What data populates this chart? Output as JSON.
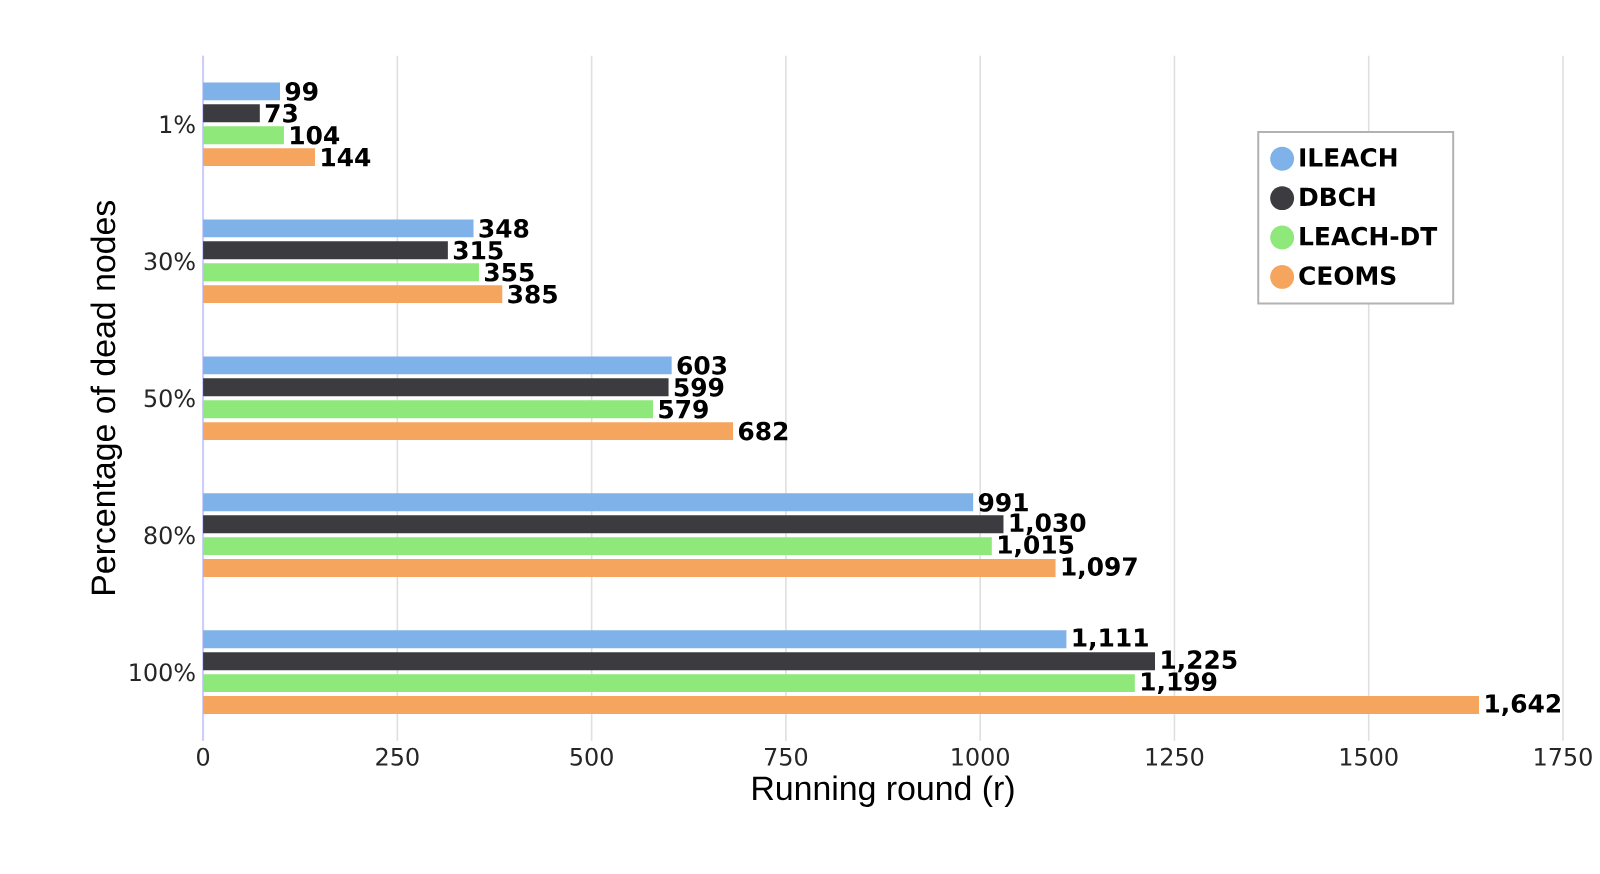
{
  "chart_data": {
    "type": "bar",
    "orientation": "horizontal",
    "xlabel": "Running round (r)",
    "ylabel": "Percentage of dead nodes",
    "categories": [
      "1%",
      "30%",
      "50%",
      "80%",
      "100%"
    ],
    "series": [
      {
        "name": "ILEACH",
        "color": "#7fb2e8",
        "values": [
          99,
          348,
          603,
          991,
          1111
        ],
        "value_labels": [
          "99",
          "348",
          "603",
          "991",
          "1,111"
        ]
      },
      {
        "name": "DBCH",
        "color": "#3c3c40",
        "values": [
          73,
          315,
          599,
          1030,
          1225
        ],
        "value_labels": [
          "73",
          "315",
          "599",
          "1,030",
          "1,225"
        ]
      },
      {
        "name": "LEACH-DT",
        "color": "#8ee87a",
        "values": [
          104,
          355,
          579,
          1015,
          1199
        ],
        "value_labels": [
          "104",
          "355",
          "579",
          "1,015",
          "1,199"
        ]
      },
      {
        "name": "CEOMS",
        "color": "#f6a55e",
        "values": [
          144,
          385,
          682,
          1097,
          1642
        ],
        "value_labels": [
          "144",
          "385",
          "682",
          "1,097",
          "1,642"
        ]
      }
    ],
    "xlim": [
      0,
      1750
    ],
    "xticks": [
      0,
      250,
      500,
      750,
      1000,
      1250,
      1500,
      1750
    ],
    "grid": "x",
    "legend": "top right"
  }
}
